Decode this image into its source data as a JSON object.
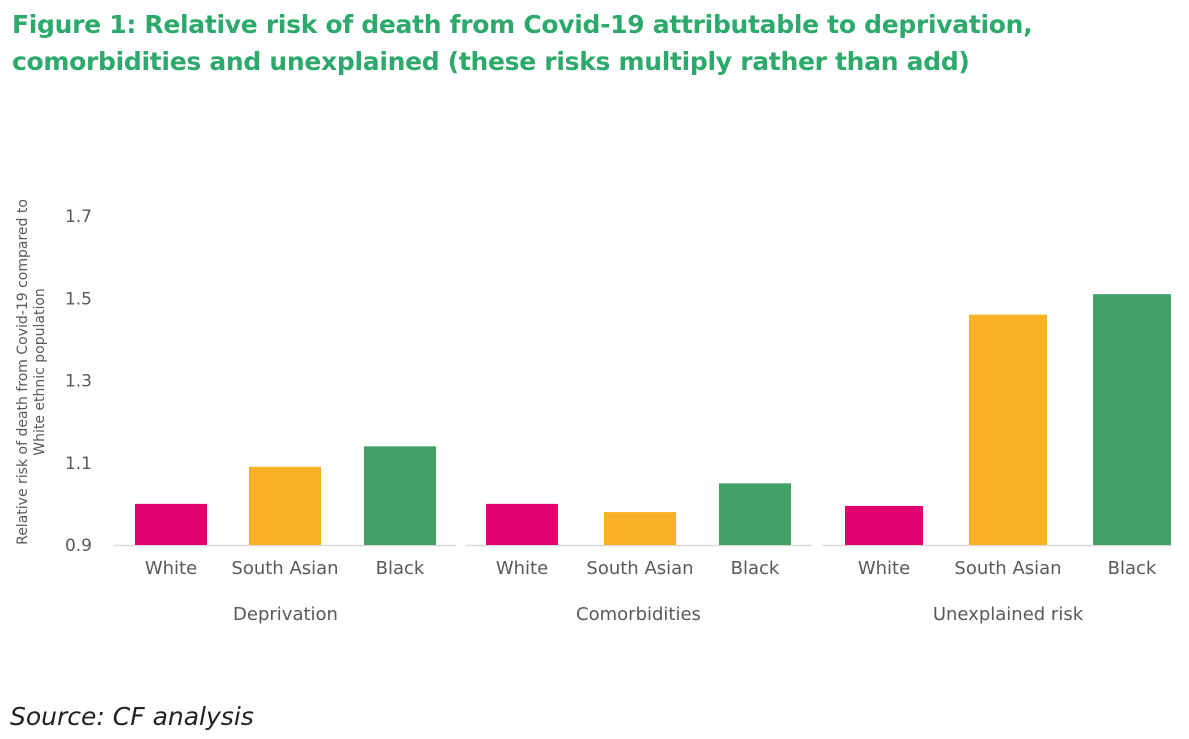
{
  "title": "Figure 1: Relative risk of death from Covid-19 attributable to deprivation, comorbidities and unexplained (these risks multiply rather than add)",
  "source": "Source: CF analysis",
  "chart_data": {
    "type": "bar",
    "title": "Figure 1: Relative risk of death from Covid-19 attributable to deprivation, comorbidities and unexplained (these risks multiply rather than add)",
    "ylabel": "Relative risk of death from Covid-19 compared to White ethnic population",
    "ylim": [
      0.9,
      1.7
    ],
    "yticks": [
      0.9,
      1.1,
      1.3,
      1.5,
      1.7
    ],
    "grid": false,
    "legend": "none",
    "colors": {
      "White": "#e0006e",
      "South Asian": "#f9b024",
      "Black": "#43a067"
    },
    "groups": [
      {
        "name": "Deprivation",
        "categories": [
          "White",
          "South Asian",
          "Black"
        ],
        "values": [
          1.0,
          1.09,
          1.14
        ]
      },
      {
        "name": "Comorbidities",
        "categories": [
          "White",
          "South Asian",
          "Black"
        ],
        "values": [
          1.0,
          0.98,
          1.05
        ]
      },
      {
        "name": "Unexplained risk",
        "categories": [
          "White",
          "South Asian",
          "Black"
        ],
        "values": [
          0.995,
          1.46,
          1.51
        ]
      }
    ]
  }
}
